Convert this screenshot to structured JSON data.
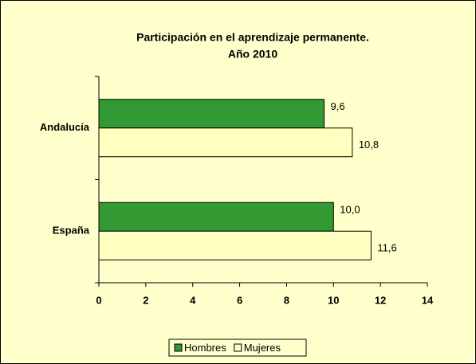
{
  "chart_data": {
    "type": "hbar",
    "title": "Participación en el aprendizaje permanente.",
    "subtitle": "Año 2010",
    "categories": [
      "Andalucía",
      "España"
    ],
    "series": [
      {
        "name": "Hombres",
        "color": "#339933",
        "values": [
          9.6,
          10.0
        ],
        "value_labels": [
          "9,6",
          "10,0"
        ]
      },
      {
        "name": "Mujeres",
        "color": "#ffffc0",
        "values": [
          10.8,
          11.6
        ],
        "value_labels": [
          "10,8",
          "11,6"
        ]
      }
    ],
    "xlim": [
      0,
      14
    ],
    "xticks": [
      0,
      2,
      4,
      6,
      8,
      10,
      12,
      14
    ],
    "legend": "bottom"
  }
}
